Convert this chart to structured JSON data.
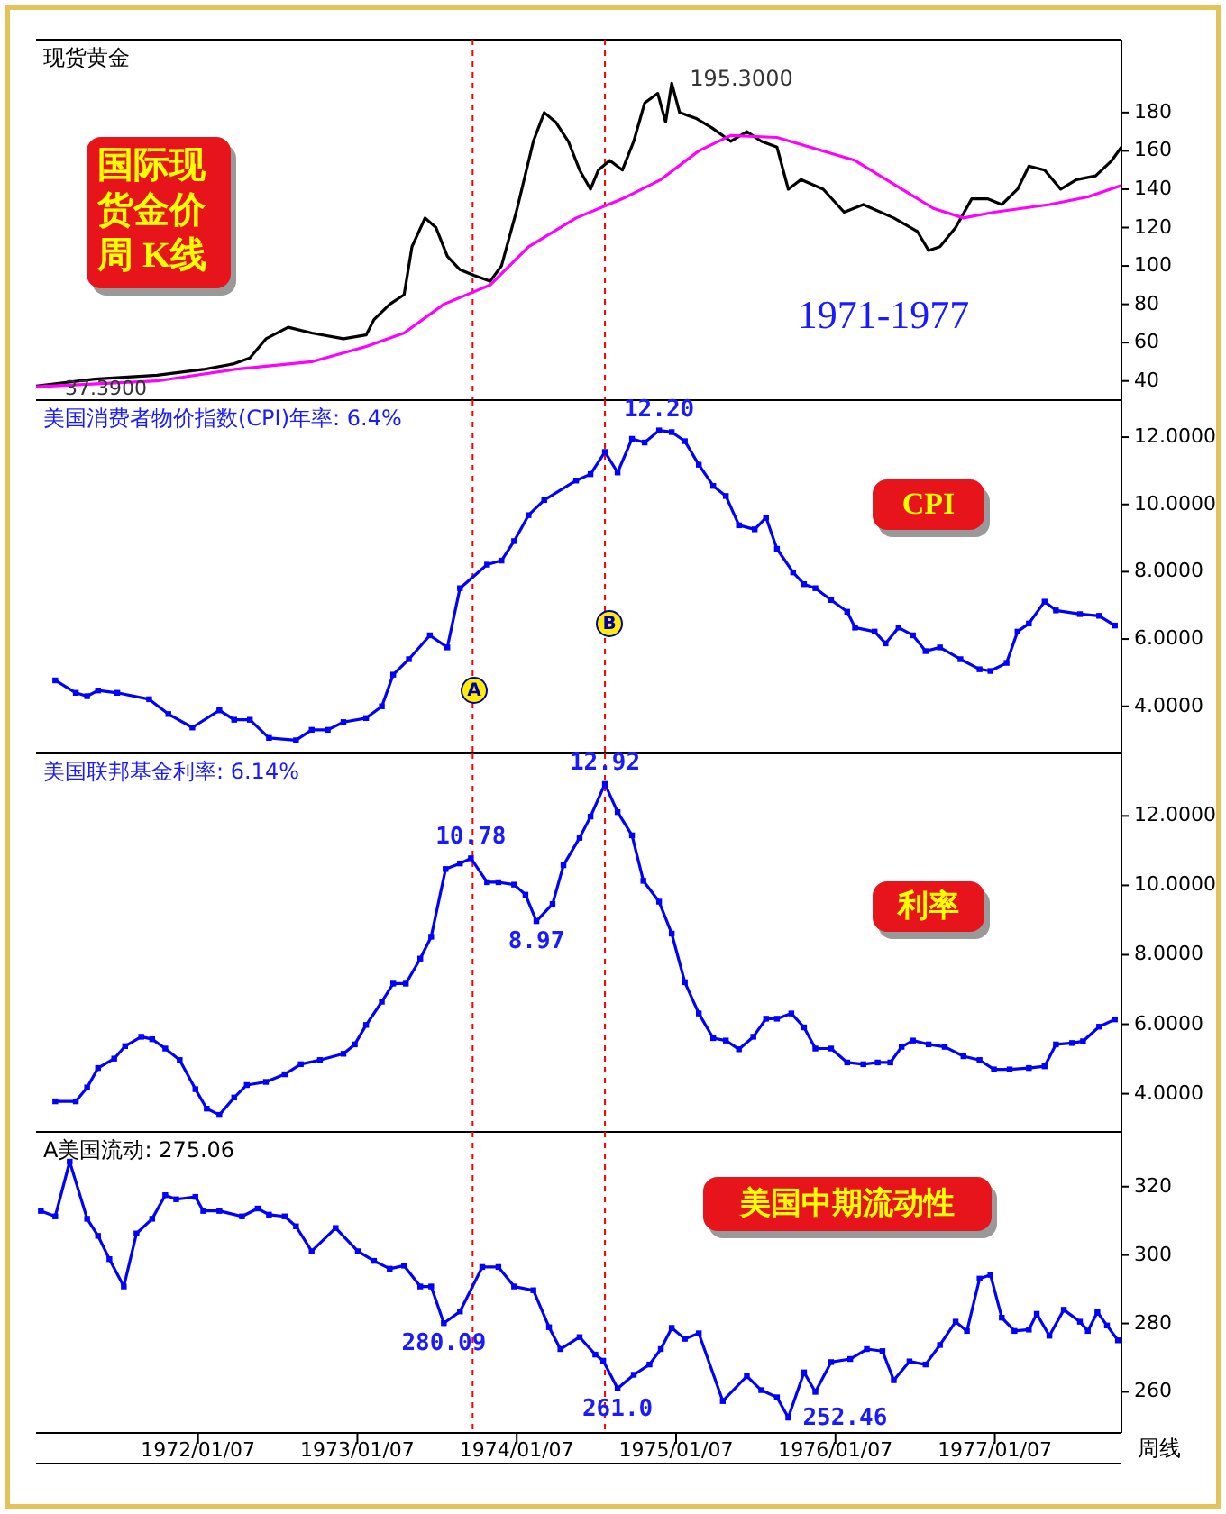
{
  "chart_data": [
    {
      "type": "line",
      "title": "现货黄金",
      "xlim": [
        "1971-01-01",
        "1977-10-24"
      ],
      "ylim": [
        30,
        218
      ],
      "yticks": [
        40,
        60,
        80,
        100,
        120,
        140,
        160,
        180
      ],
      "tick_labels": "y",
      "series": [
        {
          "color": "#000000",
          "x": [
            "1971-01-01",
            "1971-05-16",
            "1971-10-05",
            "1972-01-19",
            "1972-03-30",
            "1972-05-05",
            "1972-06-11",
            "1972-08-01",
            "1972-09-24",
            "1972-12-06",
            "1973-01-27",
            "1973-02-14",
            "1973-03-22",
            "1973-04-24",
            "1973-05-12",
            "1973-06-11",
            "1973-07-06",
            "1973-08-01",
            "1973-08-30",
            "1973-10-02",
            "1973-11-07",
            "1973-12-03",
            "1974-01-08",
            "1974-02-14",
            "1974-03-11",
            "1974-04-06",
            "1974-05-05",
            "1974-05-31",
            "1974-06-25",
            "1974-07-13",
            "1974-08-08",
            "1974-09-06",
            "1974-10-02",
            "1974-10-27",
            "1974-11-26",
            "1974-12-14",
            "1974-12-28",
            "1975-01-15",
            "1975-02-21",
            "1975-03-30",
            "1975-05-12",
            "1975-06-18",
            "1975-07-21",
            "1975-08-26",
            "1975-09-21",
            "1975-10-20",
            "1975-12-10",
            "1976-01-27",
            "1976-03-11",
            "1976-05-20",
            "1976-07-13",
            "1976-08-08",
            "1976-09-03",
            "1976-10-09",
            "1976-11-15",
            "1976-12-21",
            "1977-01-23",
            "1977-02-28",
            "1977-03-26",
            "1977-05-01",
            "1977-06-07",
            "1977-07-13",
            "1977-08-26",
            "1977-10-02",
            "1977-10-24"
          ],
          "values": [
            37.39,
            41,
            43,
            46,
            49,
            52,
            62,
            68,
            65,
            62,
            64,
            72,
            80,
            85,
            110,
            125,
            120,
            105,
            98,
            95,
            92,
            100,
            130,
            165,
            180,
            175,
            165,
            150,
            140,
            150,
            155,
            150,
            165,
            185,
            190,
            175,
            195.3,
            180,
            177,
            172,
            165,
            170,
            165,
            162,
            140,
            145,
            140,
            128,
            132,
            125,
            118,
            108,
            110,
            120,
            135,
            135,
            132,
            140,
            152,
            150,
            140,
            145,
            147,
            155,
            162
          ]
        },
        {
          "color": "#ff00ff",
          "x": [
            "1971-01-01",
            "1971-10-05",
            "1972-03-30",
            "1972-09-24",
            "1973-01-27",
            "1973-04-24",
            "1973-07-24",
            "1973-11-07",
            "1974-02-03",
            "1974-05-23",
            "1974-09-06",
            "1974-12-03",
            "1975-02-28",
            "1975-05-12",
            "1975-08-26",
            "1976-02-21",
            "1976-08-19",
            "1976-10-27",
            "1977-01-05",
            "1977-05-12",
            "1977-08-08",
            "1977-10-24"
          ],
          "values": [
            37,
            40,
            46,
            50,
            58,
            65,
            80,
            90,
            110,
            125,
            135,
            145,
            160,
            168,
            167,
            155,
            130,
            125,
            128,
            132,
            136,
            142
          ]
        }
      ],
      "ref_lines": [
        {
          "axis": "x",
          "value": "1973-09-28",
          "color": "#ff0000",
          "line_style": "dashed"
        },
        {
          "axis": "x",
          "value": "1974-07-28",
          "color": "#ff0000",
          "line_style": "dashed"
        }
      ],
      "annotations": [
        "国际现货金价周 K线",
        "1971-1977",
        {
          "text": "195.3000",
          "x": "1974-12-28",
          "y": 195.3
        },
        {
          "text": "37.3900",
          "x": "1971-01-01",
          "y": 37.39
        }
      ]
    },
    {
      "type": "line",
      "title": "美国消费者物价指数(CPI)年率: 6.4%",
      "marker": "square",
      "xlim": [
        "1971-01-01",
        "1977-10-24"
      ],
      "ylim": [
        2.6,
        13.1
      ],
      "yticks": [
        {
          "value": 4,
          "label": "4.0000"
        },
        {
          "value": 6,
          "label": "6.0000"
        },
        {
          "value": 8,
          "label": "8.0000"
        },
        {
          "value": 10,
          "label": "10.0000"
        },
        {
          "value": 12,
          "label": "12.0000"
        }
      ],
      "tick_labels": "y",
      "series": [
        {
          "color": "#0000ff",
          "x": [
            "1971-02-14",
            "1971-04-02",
            "1971-04-28",
            "1971-05-23",
            "1971-07-06",
            "1971-09-17",
            "1971-10-31",
            "1971-12-25",
            "1972-02-25",
            "1972-03-30",
            "1972-05-05",
            "1972-06-18",
            "1972-08-19",
            "1972-09-24",
            "1972-10-31",
            "1972-12-06",
            "1973-01-27",
            "1973-03-04",
            "1973-03-30",
            "1973-05-05",
            "1973-06-22",
            "1973-08-01",
            "1973-08-30",
            "1973-10-31",
            "1973-12-03",
            "1974-01-01",
            "1974-02-03",
            "1974-03-11",
            "1974-05-23",
            "1974-06-25",
            "1974-07-28",
            "1974-08-26",
            "1974-09-28",
            "1974-10-27",
            "1974-11-29",
            "1974-12-28",
            "1975-01-27",
            "1975-02-28",
            "1975-04-02",
            "1975-05-01",
            "1975-05-31",
            "1975-07-06",
            "1975-08-01",
            "1975-08-26",
            "1975-10-02",
            "1975-10-27",
            "1975-11-22",
            "1975-12-28",
            "1976-02-03",
            "1976-02-21",
            "1976-04-06",
            "1976-05-01",
            "1976-05-31",
            "1976-07-03",
            "1976-08-01",
            "1976-09-03",
            "1976-10-20",
            "1976-12-03",
            "1976-12-28",
            "1977-02-03",
            "1977-02-28",
            "1977-03-26",
            "1977-05-01",
            "1977-05-27",
            "1977-07-21",
            "1977-09-03",
            "1977-10-09"
          ],
          "values": [
            4.77,
            4.4,
            4.3,
            4.47,
            4.4,
            4.21,
            3.77,
            3.37,
            3.88,
            3.6,
            3.6,
            3.06,
            2.99,
            3.3,
            3.3,
            3.53,
            3.65,
            4.0,
            4.94,
            5.4,
            6.11,
            5.75,
            7.51,
            8.21,
            8.33,
            8.91,
            9.68,
            10.13,
            10.71,
            10.9,
            11.56,
            10.95,
            11.95,
            11.84,
            12.2,
            12.15,
            11.88,
            11.18,
            10.55,
            10.25,
            9.38,
            9.26,
            9.61,
            8.68,
            7.98,
            7.63,
            7.51,
            7.16,
            6.81,
            6.34,
            6.22,
            5.87,
            6.34,
            6.11,
            5.64,
            5.75,
            5.4,
            5.1,
            5.05,
            5.29,
            6.22,
            6.46,
            7.11,
            6.85,
            6.74,
            6.69,
            6.4
          ]
        }
      ],
      "ref_lines": [
        {
          "axis": "x",
          "value": "1973-09-28",
          "color": "#ff0000",
          "line_style": "dashed"
        },
        {
          "axis": "x",
          "value": "1974-07-28",
          "color": "#ff0000",
          "line_style": "dashed"
        }
      ],
      "annotations": [
        "CPI",
        "A",
        "B",
        {
          "text": "12.20",
          "x": "1974-11-29",
          "y": 12.2
        }
      ]
    },
    {
      "type": "line",
      "title": "美国联邦基金利率: 6.14%",
      "marker": "square",
      "xlim": [
        "1971-01-01",
        "1977-10-24"
      ],
      "ylim": [
        2.9,
        13.8
      ],
      "yticks": [
        {
          "value": 4,
          "label": "4.0000"
        },
        {
          "value": 6,
          "label": "6.0000"
        },
        {
          "value": 8,
          "label": "8.0000"
        },
        {
          "value": 10,
          "label": "10.0000"
        },
        {
          "value": 12,
          "label": "12.0000"
        }
      ],
      "tick_labels": "y",
      "series": [
        {
          "color": "#0000ff",
          "x": [
            "1971-02-14",
            "1971-04-02",
            "1971-04-28",
            "1971-05-23",
            "1971-06-29",
            "1971-07-24",
            "1971-08-30",
            "1971-09-24",
            "1971-10-24",
            "1971-11-26",
            "1972-01-01",
            "1972-01-27",
            "1972-02-25",
            "1972-03-30",
            "1972-04-28",
            "1972-06-11",
            "1972-07-24",
            "1972-08-30",
            "1972-10-13",
            "1972-12-06",
            "1973-01-01",
            "1973-01-27",
            "1973-03-04",
            "1973-03-30",
            "1973-04-28",
            "1973-05-31",
            "1973-06-25",
            "1973-07-28",
            "1973-08-30",
            "1973-09-24",
            "1973-10-31",
            "1973-11-26",
            "1974-01-01",
            "1974-01-27",
            "1974-02-21",
            "1974-03-30",
            "1974-04-24",
            "1974-05-31",
            "1974-06-25",
            "1974-07-28",
            "1974-08-26",
            "1974-09-28",
            "1974-10-24",
            "1974-11-29",
            "1974-12-28",
            "1975-01-27",
            "1975-02-28",
            "1975-04-02",
            "1975-05-01",
            "1975-05-31",
            "1975-07-03",
            "1975-08-01",
            "1975-08-26",
            "1975-09-28",
            "1975-10-27",
            "1975-11-22",
            "1975-12-28",
            "1976-02-03",
            "1976-03-11",
            "1976-04-13",
            "1976-05-12",
            "1976-06-07",
            "1976-07-03",
            "1976-08-08",
            "1976-09-14",
            "1976-10-27",
            "1976-12-03",
            "1977-01-05",
            "1977-02-10",
            "1977-03-26",
            "1977-05-01",
            "1977-05-27",
            "1977-07-03",
            "1977-07-28",
            "1977-09-03",
            "1977-10-09"
          ],
          "values": [
            3.78,
            3.78,
            4.18,
            4.74,
            5.01,
            5.37,
            5.64,
            5.57,
            5.3,
            4.97,
            4.13,
            3.57,
            3.39,
            3.89,
            4.25,
            4.34,
            4.56,
            4.85,
            4.97,
            5.15,
            5.42,
            5.98,
            6.65,
            7.17,
            7.17,
            7.89,
            8.52,
            10.47,
            10.63,
            10.78,
            10.09,
            10.09,
            10.02,
            9.73,
            8.97,
            9.46,
            10.58,
            11.37,
            11.98,
            12.92,
            12.11,
            11.44,
            10.13,
            9.53,
            8.61,
            7.21,
            6.31,
            5.6,
            5.53,
            5.28,
            5.64,
            6.16,
            6.16,
            6.31,
            5.91,
            5.3,
            5.3,
            4.9,
            4.85,
            4.9,
            4.9,
            5.35,
            5.53,
            5.42,
            5.35,
            5.08,
            4.97,
            4.7,
            4.7,
            4.74,
            4.79,
            5.42,
            5.46,
            5.51,
            5.93,
            6.14
          ]
        }
      ],
      "ref_lines": [
        {
          "axis": "x",
          "value": "1973-09-28",
          "color": "#ff0000",
          "line_style": "dashed"
        },
        {
          "axis": "x",
          "value": "1974-07-28",
          "color": "#ff0000",
          "line_style": "dashed"
        }
      ],
      "annotations": [
        "利率",
        {
          "text": "10.78",
          "x": "1973-09-24",
          "y": 10.78
        },
        {
          "text": "8.97",
          "x": "1974-02-21",
          "y": 8.97
        },
        {
          "text": "12.92",
          "x": "1974-07-28",
          "y": 12.92
        }
      ]
    },
    {
      "type": "line",
      "title": "A美国流动: 275.06",
      "marker": "square",
      "xlim": [
        "1971-01-01",
        "1977-10-24"
      ],
      "ylim": [
        248,
        336
      ],
      "yticks": [
        260,
        280,
        300,
        320
      ],
      "xticks": [
        {
          "value": "1972-01-07",
          "label": "1972/01/07"
        },
        {
          "value": "1973-01-07",
          "label": "1973/01/07"
        },
        {
          "value": "1974-01-07",
          "label": "1974/01/07"
        },
        {
          "value": "1975-01-07",
          "label": "1975/01/07"
        },
        {
          "value": "1976-01-07",
          "label": "1976/01/07"
        },
        {
          "value": "1977-01-07",
          "label": "1977/01/07"
        }
      ],
      "series": [
        {
          "color": "#0000ff",
          "x": [
            "1971-01-12",
            "1971-02-14",
            "1971-03-19",
            "1971-04-28",
            "1971-05-23",
            "1971-06-18",
            "1971-07-21",
            "1971-08-19",
            "1971-09-24",
            "1971-10-24",
            "1971-11-18",
            "1972-01-01",
            "1972-01-19",
            "1972-02-25",
            "1972-04-17",
            "1972-05-23",
            "1972-06-18",
            "1972-07-24",
            "1972-08-19",
            "1972-09-24",
            "1972-11-18",
            "1973-01-08",
            "1973-02-14",
            "1973-03-22",
            "1973-04-24",
            "1973-05-31",
            "1973-06-25",
            "1973-07-24",
            "1973-08-30",
            "1973-10-20",
            "1973-11-26",
            "1974-01-01",
            "1974-02-14",
            "1974-03-22",
            "1974-04-17",
            "1974-05-31",
            "1974-07-06",
            "1974-07-24",
            "1974-08-26",
            "1974-10-02",
            "1974-11-07",
            "1974-12-03",
            "1974-12-28",
            "1975-01-27",
            "1975-02-28",
            "1975-04-24",
            "1975-06-18",
            "1975-07-21",
            "1975-08-26",
            "1975-09-21",
            "1975-10-27",
            "1975-11-22",
            "1975-12-28",
            "1976-02-10",
            "1976-03-19",
            "1976-04-24",
            "1976-05-20",
            "1976-06-25",
            "1976-08-01",
            "1976-09-03",
            "1976-10-09",
            "1976-11-04",
            "1976-12-03",
            "1976-12-28",
            "1977-01-23",
            "1977-02-21",
            "1977-03-26",
            "1977-04-13",
            "1977-05-12",
            "1977-06-14",
            "1977-07-21",
            "1977-08-08",
            "1977-08-30",
            "1977-09-21",
            "1977-10-16"
          ],
          "values": [
            312.9,
            311.3,
            327.3,
            310.6,
            305.6,
            298.8,
            290.8,
            306.3,
            310.6,
            317.5,
            316.3,
            317.0,
            312.9,
            312.9,
            311.3,
            313.6,
            311.8,
            311.3,
            308.4,
            301.1,
            307.9,
            301.1,
            298.3,
            296.0,
            296.9,
            290.8,
            290.8,
            280.09,
            283.5,
            296.5,
            296.5,
            290.8,
            289.7,
            278.9,
            272.5,
            276.0,
            270.9,
            269.1,
            261.0,
            265.0,
            268.0,
            272.5,
            278.7,
            275.5,
            277.1,
            257.3,
            264.6,
            260.5,
            258.4,
            252.46,
            265.7,
            260.0,
            268.7,
            269.6,
            272.5,
            271.9,
            263.4,
            268.9,
            268.0,
            273.7,
            280.5,
            277.8,
            293.1,
            294.2,
            281.7,
            277.8,
            278.2,
            282.8,
            276.4,
            284.0,
            280.5,
            277.8,
            283.3,
            279.4,
            275.06
          ]
        }
      ],
      "ref_lines": [
        {
          "axis": "x",
          "value": "1973-09-28",
          "color": "#ff0000",
          "line_style": "dashed"
        },
        {
          "axis": "x",
          "value": "1974-07-28",
          "color": "#ff0000",
          "line_style": "dashed"
        }
      ],
      "annotations": [
        "美国中期流动性",
        "周线",
        {
          "text": "280.09",
          "x": "1973-07-24",
          "y": 280.09
        },
        {
          "text": "261.0",
          "x": "1974-08-26",
          "y": 261.0
        },
        {
          "text": "252.46",
          "x": "1975-09-21",
          "y": 252.46
        }
      ]
    }
  ]
}
